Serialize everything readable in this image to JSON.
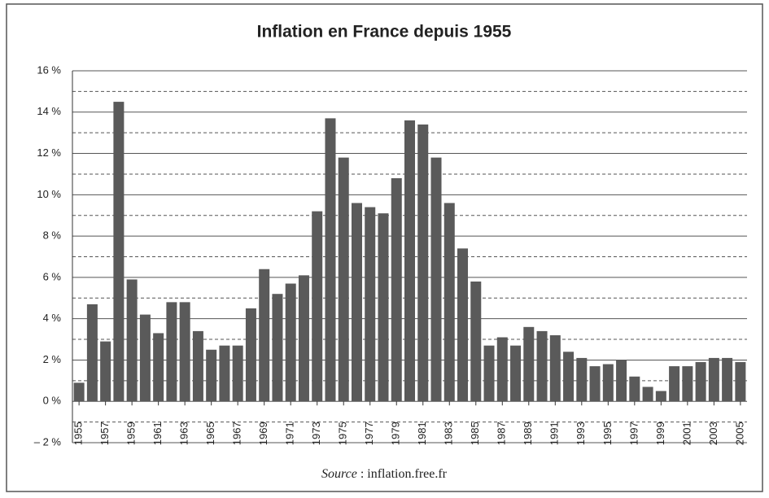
{
  "chart_data": {
    "type": "bar",
    "title": "Inflation en France depuis 1955",
    "categories": [
      "1955",
      null,
      "1957",
      null,
      "1959",
      null,
      "1961",
      null,
      "1963",
      null,
      "1965",
      null,
      "1967",
      null,
      "1969",
      null,
      "1971",
      null,
      "1973",
      null,
      "1975",
      null,
      "1977",
      null,
      "1979",
      null,
      "1981",
      null,
      "1983",
      null,
      "1985",
      null,
      "1987",
      null,
      "1989",
      null,
      "1991",
      null,
      "1993",
      null,
      "1995",
      null,
      "1997",
      null,
      "1999",
      null,
      "2001",
      null,
      "2003",
      null,
      "2005"
    ],
    "values": [
      0.9,
      4.7,
      2.9,
      14.5,
      5.9,
      4.2,
      3.3,
      4.8,
      4.8,
      3.4,
      2.5,
      2.7,
      2.7,
      4.5,
      6.4,
      5.2,
      5.7,
      6.1,
      9.2,
      13.7,
      11.8,
      9.6,
      9.4,
      9.1,
      10.8,
      13.6,
      13.4,
      11.8,
      9.6,
      7.4,
      5.8,
      2.7,
      3.1,
      2.7,
      3.6,
      3.4,
      3.2,
      2.4,
      2.1,
      1.7,
      1.8,
      2.0,
      1.2,
      0.7,
      0.5,
      1.7,
      1.7,
      1.9,
      2.1,
      2.1,
      1.9
    ],
    "color": "#5a5a5a",
    "ylim": [
      -2,
      16
    ],
    "yticks": [
      {
        "value": -2,
        "label": "– 2 %"
      },
      {
        "value": 0,
        "label": "0 %"
      },
      {
        "value": 2,
        "label": "2 %"
      },
      {
        "value": 4,
        "label": "4 %"
      },
      {
        "value": 6,
        "label": "6 %"
      },
      {
        "value": 8,
        "label": "8 %"
      },
      {
        "value": 10,
        "label": "10 %"
      },
      {
        "value": 12,
        "label": "12 %"
      },
      {
        "value": 14,
        "label": "14 %"
      },
      {
        "value": 16,
        "label": "16 %"
      }
    ],
    "yminor": [
      -1,
      1,
      3,
      5,
      7,
      9,
      11,
      13,
      15
    ],
    "grid": true,
    "source": {
      "label": "Source",
      "text": " : inflation.free.fr"
    }
  }
}
